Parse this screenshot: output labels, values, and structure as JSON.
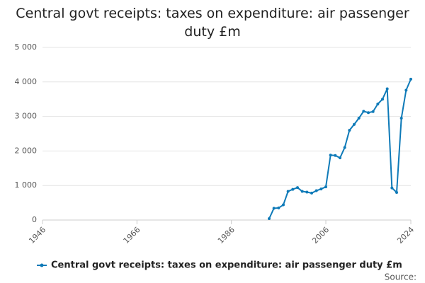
{
  "chart_data": {
    "type": "line",
    "title": "Central govt receipts: taxes on expenditure: air passenger duty £m",
    "source": "Source:",
    "x": [
      1994,
      1995,
      1996,
      1997,
      1998,
      1999,
      2000,
      2001,
      2002,
      2003,
      2004,
      2005,
      2006,
      2007,
      2008,
      2009,
      2010,
      2011,
      2012,
      2013,
      2014,
      2015,
      2016,
      2017,
      2018,
      2019,
      2020,
      2021,
      2022,
      2023,
      2024
    ],
    "series": [
      {
        "name": "Central govt receipts: taxes on expenditure: air passenger duty £m",
        "color": "#0e7ab8",
        "values": [
          40,
          340,
          350,
          440,
          830,
          890,
          940,
          830,
          810,
          780,
          850,
          900,
          960,
          1880,
          1870,
          1800,
          2100,
          2600,
          2770,
          2950,
          3150,
          3110,
          3140,
          3360,
          3500,
          3800,
          930,
          800,
          2950,
          3760,
          4080
        ]
      }
    ],
    "xlim": [
      1946,
      2024
    ],
    "xticks": [
      1946,
      1966,
      1986,
      2006,
      2024
    ],
    "ylim": [
      0,
      5000
    ],
    "yticks": [
      0,
      {
        "value": 1000,
        "label": "1 000"
      },
      {
        "value": 2000,
        "label": "2 000"
      },
      {
        "value": 3000,
        "label": "3 000"
      },
      {
        "value": 4000,
        "label": "4 000"
      },
      {
        "value": 5000,
        "label": "5 000"
      }
    ],
    "grid": true
  }
}
